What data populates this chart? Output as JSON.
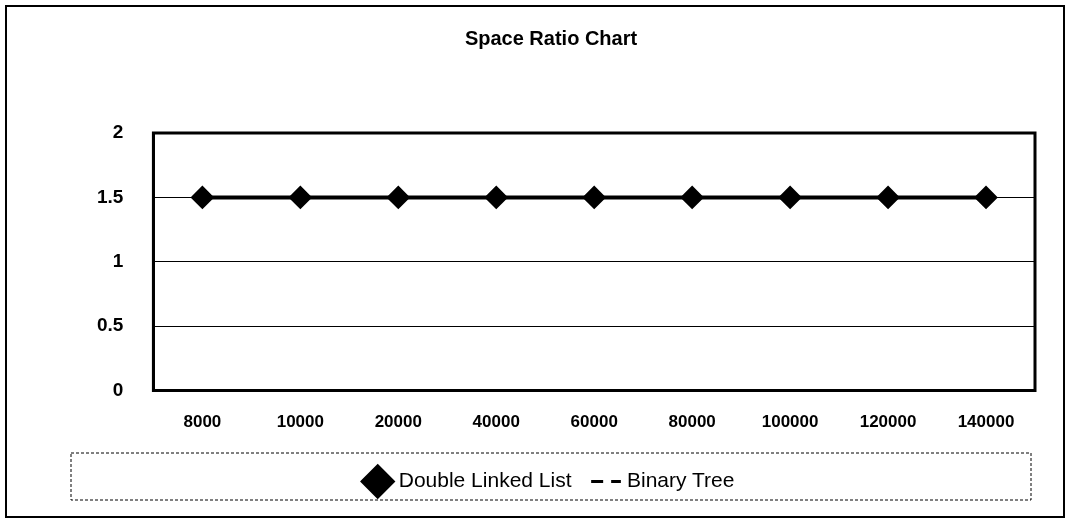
{
  "chart_data": {
    "type": "line",
    "title": "Space Ratio Chart",
    "categories": [
      "8000",
      "10000",
      "20000",
      "40000",
      "60000",
      "80000",
      "100000",
      "120000",
      "140000"
    ],
    "series": [
      {
        "name": "Double Linked List",
        "color": "#000000",
        "values": [
          1.5,
          1.5,
          1.5,
          1.5,
          1.5,
          1.5,
          1.5,
          1.5,
          1.5
        ],
        "marker": "diamond",
        "line_style": "solid"
      },
      {
        "name": "Binary Tree",
        "color": "#000000",
        "values": [
          null,
          null,
          null,
          null,
          null,
          null,
          null,
          null,
          null
        ],
        "marker": "none",
        "line_style": "dashed"
      }
    ],
    "ylim": [
      0,
      2
    ],
    "yticks": [
      0,
      0.5,
      1,
      1.5,
      2
    ],
    "grid": "y",
    "legend": "bottom"
  }
}
